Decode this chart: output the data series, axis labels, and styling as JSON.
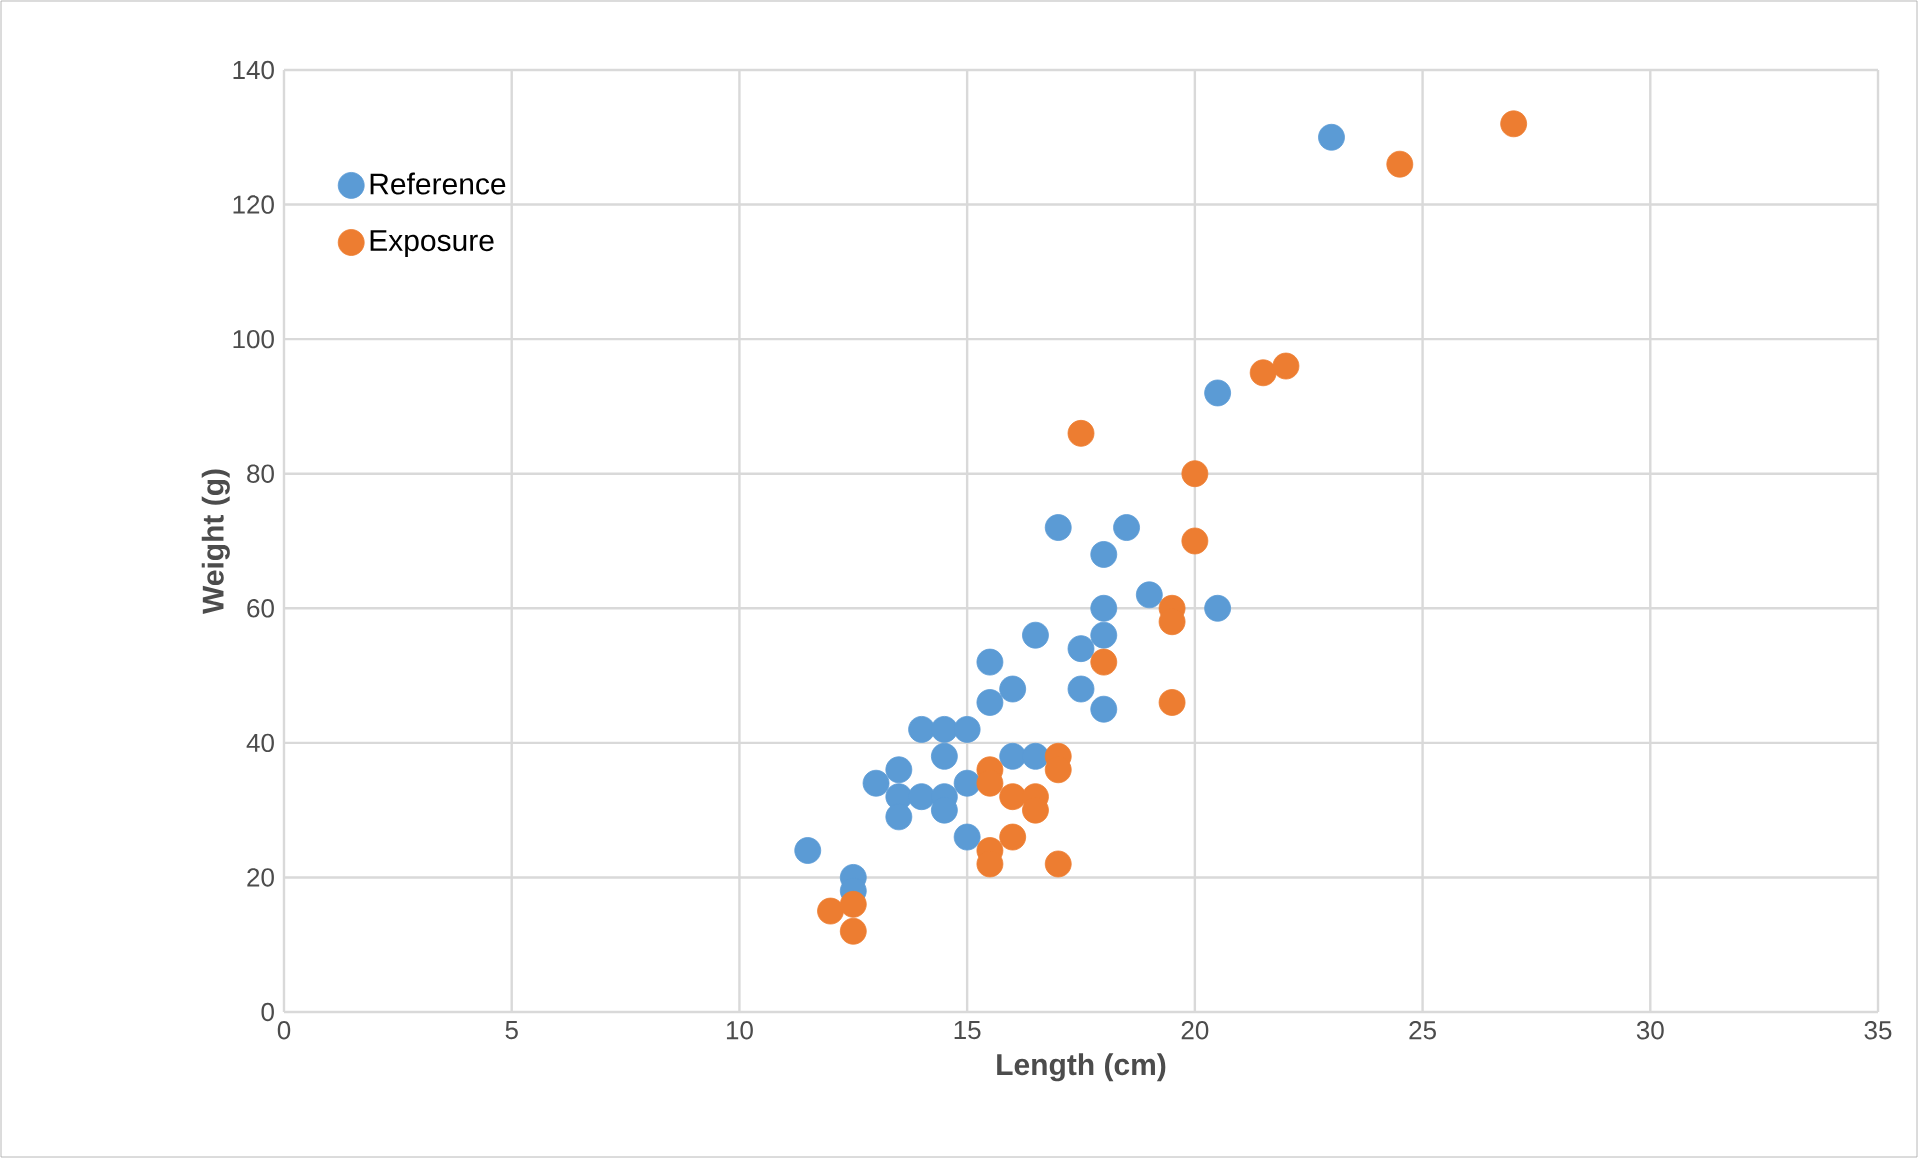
{
  "chart_data": {
    "type": "scatter",
    "xlabel": "Length (cm)",
    "ylabel": "Weight (g)",
    "xlim": [
      0,
      35
    ],
    "xticks": [
      0,
      5,
      10,
      15,
      20,
      25,
      30,
      35
    ],
    "ylim": [
      0,
      140
    ],
    "yticks": [
      0,
      20,
      40,
      60,
      80,
      100,
      120,
      140
    ],
    "grid": true,
    "legend": "top left",
    "marker": "circle",
    "series": [
      {
        "name": "Reference",
        "color": "#5b9bd5",
        "x": [
          11.5,
          12.5,
          12.5,
          13,
          13.5,
          13.5,
          13.5,
          14,
          14,
          14.5,
          14.5,
          14.5,
          14.5,
          15,
          15,
          15,
          15.5,
          15.5,
          16,
          16,
          16.5,
          16.5,
          17,
          17.5,
          17.5,
          18,
          18,
          18,
          18,
          18.5,
          19,
          20.5,
          20.5,
          23
        ],
        "values": [
          24,
          20,
          18,
          34,
          36,
          32,
          29,
          32,
          42,
          42,
          38,
          32,
          30,
          42,
          34,
          26,
          52,
          46,
          48,
          38,
          56,
          38,
          72,
          54,
          48,
          68,
          60,
          56,
          45,
          72,
          62,
          92,
          60,
          130
        ]
      },
      {
        "name": "Exposure",
        "color": "#ed7d31",
        "x": [
          12,
          12.5,
          12.5,
          15.5,
          15.5,
          15.5,
          15.5,
          16,
          16,
          16.5,
          16.5,
          17,
          17,
          17,
          17.5,
          18,
          19.5,
          19.5,
          19.5,
          20,
          20,
          21.5,
          22,
          24.5,
          27
        ],
        "values": [
          15,
          16,
          12,
          36,
          34,
          24,
          22,
          32,
          26,
          32,
          30,
          38,
          36,
          22,
          86,
          52,
          60,
          58,
          46,
          80,
          70,
          95,
          96,
          126,
          132
        ]
      }
    ]
  }
}
